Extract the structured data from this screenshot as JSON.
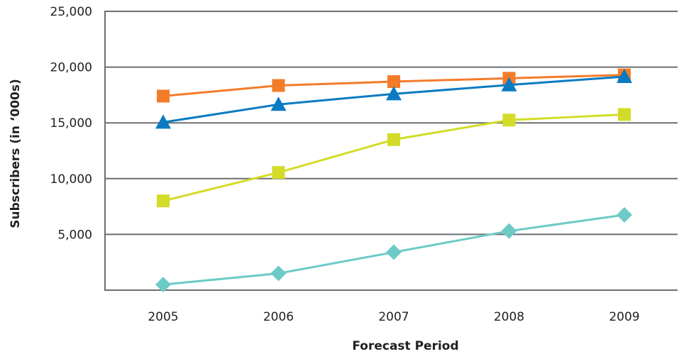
{
  "chart_data": {
    "type": "line",
    "title": "",
    "xlabel": "Forecast Period",
    "ylabel": "Subscribers (in ‘000s)",
    "categories": [
      "2005",
      "2006",
      "2007",
      "2008",
      "2009"
    ],
    "ylim": [
      0,
      25000
    ],
    "yticks": [
      0,
      5000,
      10000,
      15000,
      20000,
      25000
    ],
    "ytick_labels": [
      "5,000",
      "10,000",
      "15,000",
      "20,000",
      "25,000"
    ],
    "grid": "horizontal",
    "legend": "none",
    "series": [
      {
        "values": [
          17400,
          18350,
          18700,
          19000,
          19300
        ],
        "color": "#f37c2a",
        "marker": "square"
      },
      {
        "values": [
          15050,
          16650,
          17600,
          18400,
          19150
        ],
        "color": "#0a7bc2",
        "marker": "triangle"
      },
      {
        "values": [
          8000,
          10550,
          13500,
          15250,
          15750
        ],
        "color": "#d3dc28",
        "marker": "square"
      },
      {
        "values": [
          500,
          1500,
          3400,
          5300,
          6750
        ],
        "color": "#6ccbc6",
        "marker": "diamond"
      }
    ]
  }
}
